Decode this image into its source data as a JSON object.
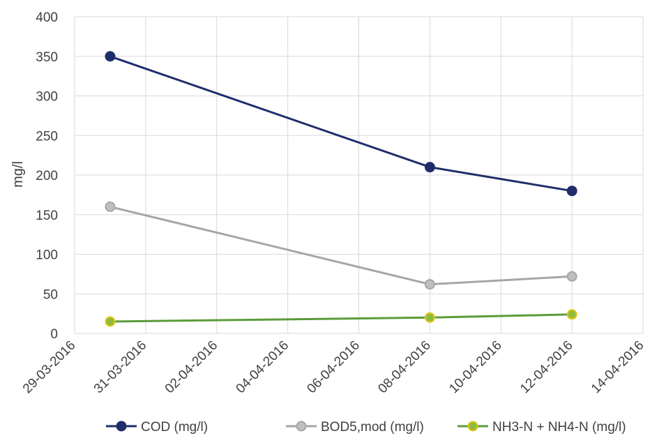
{
  "chart_data": {
    "type": "line",
    "title": "",
    "xlabel": "",
    "ylabel": "mg/l",
    "x_ticks": [
      "29-03-2016",
      "31-03-2016",
      "02-04-2016",
      "04-04-2016",
      "06-04-2016",
      "08-04-2016",
      "10-04-2016",
      "12-04-2016",
      "14-04-2016"
    ],
    "xlim": [
      "2016-03-29",
      "2016-04-14"
    ],
    "ylim": [
      0,
      400
    ],
    "y_ticks": [
      0,
      50,
      100,
      150,
      200,
      250,
      300,
      350,
      400
    ],
    "grid": true,
    "legend_position": "bottom",
    "series": [
      {
        "name": "COD (mg/l)",
        "color": "#1f2d6b",
        "marker_fill": "#1f2d6b",
        "marker_stroke": "#1f2d6b",
        "points": [
          {
            "x": "2016-03-30",
            "y": 350
          },
          {
            "x": "2016-04-08",
            "y": 210
          },
          {
            "x": "2016-04-12",
            "y": 180
          }
        ]
      },
      {
        "name": "BOD5,mod (mg/l)",
        "color": "#a6a6a6",
        "marker_fill": "#bfbfbf",
        "marker_stroke": "#a6a6a6",
        "points": [
          {
            "x": "2016-03-30",
            "y": 160
          },
          {
            "x": "2016-04-08",
            "y": 62
          },
          {
            "x": "2016-04-12",
            "y": 72
          }
        ]
      },
      {
        "name": "NH3-N + NH4-N (mg/l)",
        "color": "#5b9b3a",
        "marker_fill": "#8fbc3f",
        "marker_stroke": "#e6c619",
        "points": [
          {
            "x": "2016-03-30",
            "y": 15
          },
          {
            "x": "2016-04-08",
            "y": 20
          },
          {
            "x": "2016-04-12",
            "y": 24
          }
        ]
      }
    ]
  }
}
